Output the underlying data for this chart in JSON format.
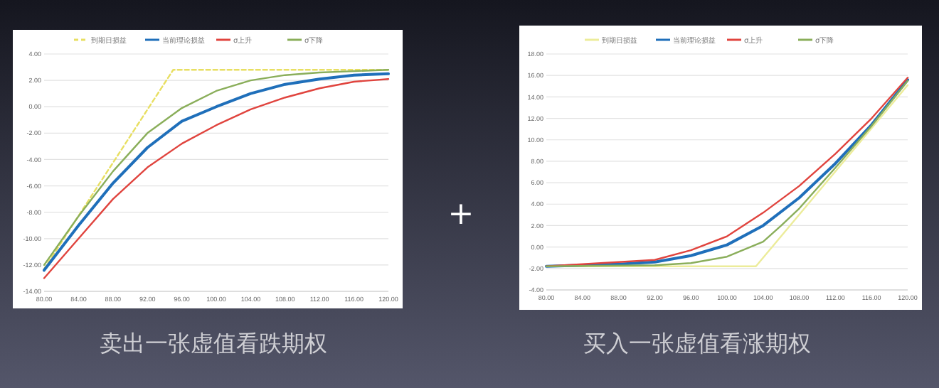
{
  "chart_data": [
    {
      "type": "line",
      "title": "卖出一张虚值看跌期权",
      "annotations": [
        "+"
      ],
      "xlim": [
        80,
        120
      ],
      "xticks": [
        {
          "value": 80,
          "label": "80.00"
        },
        {
          "value": 84,
          "label": "84.00"
        },
        {
          "value": 88,
          "label": "88.00"
        },
        {
          "value": 92,
          "label": "92.00"
        },
        {
          "value": 96,
          "label": "96.00"
        },
        {
          "value": 100,
          "label": "100.00"
        },
        {
          "value": 104,
          "label": "104.00"
        },
        {
          "value": 108,
          "label": "108.00"
        },
        {
          "value": 112,
          "label": "112.00"
        },
        {
          "value": 116,
          "label": "116.00"
        },
        {
          "value": 120,
          "label": "120.00"
        }
      ],
      "ylim": [
        -14,
        4
      ],
      "yticks": [
        {
          "value": -14,
          "label": "-14.00"
        },
        {
          "value": -12,
          "label": "-12.00"
        },
        {
          "value": -10,
          "label": "-10.00"
        },
        {
          "value": -8,
          "label": "-8.00"
        },
        {
          "value": -6,
          "label": "-6.00"
        },
        {
          "value": -4,
          "label": "-4.00"
        },
        {
          "value": -2,
          "label": "-2.00"
        },
        {
          "value": 0,
          "label": "0.00"
        },
        {
          "value": 2,
          "label": "2.00"
        },
        {
          "value": 4,
          "label": "4.00"
        }
      ],
      "grid": "y",
      "legend": "top",
      "series": [
        {
          "name": "到期日损益",
          "color": "#e8df62",
          "line_style": "dashed",
          "x": [
            80,
            95,
            120
          ],
          "values": [
            -12.3,
            2.8,
            2.8
          ]
        },
        {
          "name": "当前理论损益",
          "color": "#1f6fba",
          "x": [
            80,
            84,
            88,
            92,
            96,
            100,
            104,
            108,
            112,
            116,
            120
          ],
          "values": [
            -12.4,
            -9.0,
            -5.8,
            -3.1,
            -1.1,
            0.0,
            1.0,
            1.7,
            2.1,
            2.4,
            2.5
          ]
        },
        {
          "name": "σ上升",
          "color": "#e0443e",
          "x": [
            80,
            84,
            88,
            92,
            96,
            100,
            104,
            108,
            112,
            116,
            120
          ],
          "values": [
            -13.0,
            -10.0,
            -7.0,
            -4.6,
            -2.8,
            -1.4,
            -0.2,
            0.7,
            1.4,
            1.9,
            2.1
          ]
        },
        {
          "name": "σ下降",
          "color": "#8aae5a",
          "x": [
            80,
            84,
            88,
            92,
            96,
            100,
            104,
            108,
            112,
            116,
            120
          ],
          "values": [
            -12.0,
            -8.3,
            -4.9,
            -2.0,
            -0.1,
            1.2,
            2.0,
            2.4,
            2.6,
            2.7,
            2.8
          ]
        }
      ]
    },
    {
      "type": "line",
      "title": "买入一张虚值看涨期权",
      "xlim": [
        80,
        120
      ],
      "xticks": [
        {
          "value": 80,
          "label": "80.00"
        },
        {
          "value": 84,
          "label": "84.00"
        },
        {
          "value": 88,
          "label": "88.00"
        },
        {
          "value": 92,
          "label": "92.00"
        },
        {
          "value": 96,
          "label": "96.00"
        },
        {
          "value": 100,
          "label": "100.00"
        },
        {
          "value": 104,
          "label": "104.00"
        },
        {
          "value": 108,
          "label": "108.00"
        },
        {
          "value": 112,
          "label": "112.00"
        },
        {
          "value": 116,
          "label": "116.00"
        },
        {
          "value": 120,
          "label": "120.00"
        }
      ],
      "ylim": [
        -4,
        18
      ],
      "yticks": [
        {
          "value": -4,
          "label": "-4.00"
        },
        {
          "value": -2,
          "label": "-2.00"
        },
        {
          "value": 0,
          "label": "0.00"
        },
        {
          "value": 2,
          "label": "2.00"
        },
        {
          "value": 4,
          "label": "4.00"
        },
        {
          "value": 6,
          "label": "6.00"
        },
        {
          "value": 8,
          "label": "8.00"
        },
        {
          "value": 10,
          "label": "10.00"
        },
        {
          "value": 12,
          "label": "12.00"
        },
        {
          "value": 14,
          "label": "14.00"
        },
        {
          "value": 16,
          "label": "16.00"
        },
        {
          "value": 18,
          "label": "18.00"
        }
      ],
      "grid": "y",
      "legend": "top",
      "series": [
        {
          "name": "到期日损益",
          "color": "#ecec9a",
          "line_style": "solid",
          "x": [
            80,
            103.2,
            120
          ],
          "values": [
            -1.8,
            -1.8,
            15.1
          ]
        },
        {
          "name": "当前理论损益",
          "color": "#1f6fba",
          "x": [
            80,
            88,
            92,
            96,
            100,
            104,
            108,
            112,
            116,
            120
          ],
          "values": [
            -1.8,
            -1.6,
            -1.4,
            -0.8,
            0.2,
            2.0,
            4.6,
            7.8,
            11.4,
            15.6
          ]
        },
        {
          "name": "σ上升",
          "color": "#e0443e",
          "x": [
            80,
            84,
            88,
            92,
            96,
            100,
            104,
            108,
            112,
            116,
            120
          ],
          "values": [
            -1.8,
            -1.6,
            -1.4,
            -1.2,
            -0.3,
            1.0,
            3.2,
            5.7,
            8.7,
            12.0,
            15.8
          ]
        },
        {
          "name": "σ下降",
          "color": "#8aae5a",
          "x": [
            80,
            92,
            96,
            100,
            102,
            104,
            106,
            108,
            112,
            116,
            120
          ],
          "values": [
            -1.8,
            -1.7,
            -1.5,
            -0.9,
            -0.2,
            0.5,
            2.0,
            3.6,
            7.4,
            11.3,
            15.5
          ]
        }
      ]
    }
  ]
}
